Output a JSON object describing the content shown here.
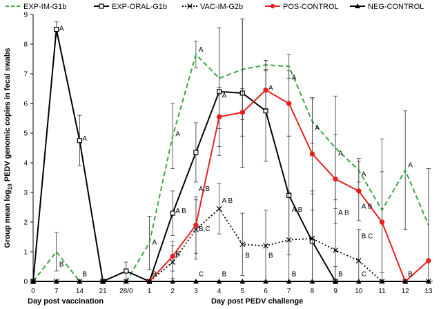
{
  "chart_data": {
    "type": "line",
    "title": "",
    "ylabel_parts": [
      "Group mean log",
      "10",
      " PEDV genomic copies in fecal swabs"
    ],
    "xlabel_left": "Day post vaccination",
    "xlabel_right": "Day post PEDV challenge",
    "ylim": [
      0,
      9
    ],
    "yticks": [
      "0",
      "1",
      "2",
      "3",
      "4",
      "5",
      "6",
      "7",
      "8",
      "9"
    ],
    "categories": [
      "0",
      "7",
      "14",
      "21",
      "28/0",
      "1",
      "2",
      "3",
      "4",
      "5",
      "6",
      "7",
      "8",
      "9",
      "10",
      "11",
      "12",
      "13"
    ],
    "series": [
      {
        "name": "EXP-IM-G1b",
        "color": "#3aa540",
        "style": "dashed",
        "marker": "none",
        "values": [
          0,
          1.0,
          0,
          0,
          0,
          1.3,
          4.9,
          7.65,
          6.85,
          7.15,
          7.3,
          7.25,
          5.4,
          4.5,
          3.75,
          2.4,
          3.75,
          1.9
        ],
        "errors": [
          null,
          0.65,
          null,
          null,
          null,
          0.9,
          1.1,
          0.45,
          1.7,
          1.7,
          0.15,
          0.4,
          0.75,
          1.75,
          0.4,
          2.4,
          2.0,
          1.9
        ]
      },
      {
        "name": "EXP-ORAL-G1b",
        "color": "#000000",
        "style": "solid",
        "marker": "square",
        "values": [
          0,
          8.5,
          4.75,
          0,
          0.35,
          0,
          2.3,
          4.35,
          6.4,
          6.35,
          5.75,
          2.9,
          1.35,
          0,
          null,
          null,
          null,
          null
        ],
        "errors": [
          null,
          0.25,
          0.85,
          null,
          0.3,
          null,
          0.75,
          1.0,
          2.15,
          2.5,
          1.7,
          2.0,
          1.6,
          0.5,
          null,
          null,
          null,
          null
        ]
      },
      {
        "name": "VAC-IM-G2b",
        "color": "#000000",
        "style": "dotted",
        "marker": "x",
        "values": [
          0,
          0,
          0,
          0,
          0,
          0,
          0.65,
          1.75,
          2.45,
          1.25,
          1.2,
          1.4,
          1.45,
          1.05,
          0.7,
          0,
          0,
          0
        ],
        "errors": [
          null,
          null,
          null,
          null,
          null,
          null,
          0.55,
          1.0,
          0.85,
          1.05,
          1.2,
          1.6,
          1.6,
          1.4,
          1.05,
          null,
          null,
          null
        ]
      },
      {
        "name": "POS-CONTROL",
        "color": "#e8201d",
        "style": "solid",
        "marker": "circle",
        "values": [
          null,
          null,
          null,
          null,
          null,
          0,
          0.85,
          1.9,
          5.55,
          5.7,
          6.45,
          6.0,
          4.3,
          3.45,
          3.05,
          2.0,
          0,
          0.7
        ],
        "errors": [
          null,
          null,
          null,
          null,
          null,
          null,
          0.5,
          0.95,
          1.0,
          0.8,
          0.65,
          1.1,
          1.9,
          1.5,
          1.0,
          1.7,
          null,
          3.1
        ]
      },
      {
        "name": "NEG-CONTROL",
        "color": "#000000",
        "style": "solid",
        "marker": "triangle",
        "values": [
          0,
          0,
          0,
          0,
          0,
          0,
          0,
          0,
          0,
          0,
          0,
          0,
          0,
          0,
          0,
          0,
          0,
          0
        ],
        "errors": [
          null,
          null,
          null,
          null,
          null,
          null,
          null,
          null,
          null,
          null,
          null,
          null,
          null,
          null,
          null,
          null,
          null,
          null
        ]
      }
    ],
    "annotations": [
      {
        "text": "A",
        "x": 1,
        "y": 8.45
      },
      {
        "text": "B",
        "x": 1,
        "y": 0.5
      },
      {
        "text": "A",
        "x": 2,
        "y": 4.75
      },
      {
        "text": "B",
        "x": 2,
        "y": 0.18
      },
      {
        "text": "B",
        "x": 5,
        "y": 0.18
      },
      {
        "text": "A",
        "x": 5,
        "y": 1.25
      },
      {
        "text": "A",
        "x": 6,
        "y": 4.9
      },
      {
        "text": "A B",
        "x": 6,
        "y": 2.3
      },
      {
        "text": "B",
        "x": 6,
        "y": 0.85
      },
      {
        "text": "A",
        "x": 7,
        "y": 7.75
      },
      {
        "text": "A,B",
        "x": 7,
        "y": 3.05
      },
      {
        "text": "B,C",
        "x": 7,
        "y": 1.7
      },
      {
        "text": "C",
        "x": 7,
        "y": 0.18
      },
      {
        "text": "A B",
        "x": 8,
        "y": 2.65
      },
      {
        "text": "A",
        "x": 8,
        "y": 6.2
      },
      {
        "text": "B",
        "x": 8,
        "y": 0.18
      },
      {
        "text": "B",
        "x": 9,
        "y": 0.8
      },
      {
        "text": "A",
        "x": 10,
        "y": 6.45
      },
      {
        "text": "B",
        "x": 10,
        "y": 0.8
      },
      {
        "text": "A",
        "x": 11,
        "y": 6.8
      },
      {
        "text": "A B",
        "x": 11,
        "y": 2.35
      },
      {
        "text": "B",
        "x": 11,
        "y": 0.18
      },
      {
        "text": "A",
        "x": 12,
        "y": 5.1
      },
      {
        "text": "A B",
        "x": 13,
        "y": 2.25
      },
      {
        "text": "A",
        "x": 13,
        "y": 4.25
      },
      {
        "text": "B",
        "x": 13,
        "y": 0.18
      },
      {
        "text": "A B",
        "x": 14,
        "y": 2.45
      },
      {
        "text": "A",
        "x": 14,
        "y": 3.55
      },
      {
        "text": "B C",
        "x": 14,
        "y": 1.45
      },
      {
        "text": "C",
        "x": 14,
        "y": 0.18
      },
      {
        "text": "A",
        "x": 16,
        "y": 3.85
      },
      {
        "text": "B",
        "x": 16,
        "y": 0.18
      }
    ],
    "legend_position": "top"
  }
}
